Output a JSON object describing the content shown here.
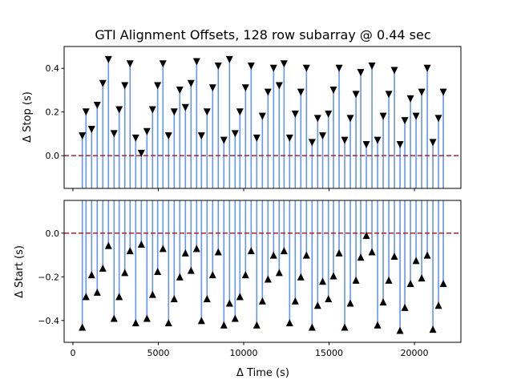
{
  "chart_data": [
    {
      "type": "stem",
      "title": "GTI Alignment Offsets, 128 row subarray @ 0.44 sec",
      "ylabel": "Δ Stop (s)",
      "xlabel": "",
      "xlim": [
        -516,
        22720
      ],
      "ylim": [
        -0.15,
        0.5
      ],
      "yticks": [
        0.0,
        0.2,
        0.4
      ],
      "ytick_labels": [
        "0.0",
        "0.2",
        "0.4"
      ],
      "marker": "triangle-down",
      "stem_color": "#6495ed",
      "reference_line": {
        "y": 0,
        "color": "#b22222",
        "style": "dashed"
      },
      "x": [
        549,
        765,
        1094,
        1423,
        1751,
        2080,
        2408,
        2709,
        3038,
        3347,
        3676,
        4005,
        4333,
        4662,
        4962,
        5272,
        5601,
        5930,
        6258,
        6587,
        6915,
        7244,
        7526,
        7854,
        8183,
        8512,
        8840,
        9169,
        9498,
        9779,
        10108,
        10437,
        10765,
        11094,
        11423,
        11751,
        12080,
        12362,
        12690,
        13019,
        13347,
        13676,
        14005,
        14333,
        14624,
        14962,
        15258,
        15587,
        15915,
        16244,
        16573,
        16854,
        17183,
        17512,
        17840,
        18169,
        18498,
        18826,
        19155,
        19437,
        19765,
        20094,
        20423,
        20751,
        21080,
        21408,
        21690
      ],
      "values": [
        0.09,
        0.2,
        0.12,
        0.23,
        0.33,
        0.44,
        0.1,
        0.21,
        0.32,
        0.42,
        0.08,
        0.01,
        0.11,
        0.21,
        0.32,
        0.42,
        0.09,
        0.2,
        0.3,
        0.22,
        0.33,
        0.43,
        0.09,
        0.2,
        0.31,
        0.41,
        0.07,
        0.44,
        0.1,
        0.2,
        0.31,
        0.41,
        0.08,
        0.18,
        0.29,
        0.4,
        0.32,
        0.42,
        0.08,
        0.19,
        0.29,
        0.4,
        0.06,
        0.17,
        0.09,
        0.19,
        0.3,
        0.4,
        0.07,
        0.17,
        0.28,
        0.38,
        0.05,
        0.41,
        0.07,
        0.18,
        0.28,
        0.39,
        0.05,
        0.16,
        0.26,
        0.18,
        0.29,
        0.4,
        0.06,
        0.17,
        0.29
      ]
    },
    {
      "type": "stem",
      "title": "",
      "ylabel": "Δ Start (s)",
      "xlabel": "Δ Time (s)",
      "xlim": [
        -516,
        22720
      ],
      "ylim": [
        -0.5,
        0.15
      ],
      "yticks": [
        0.0,
        -0.2,
        -0.4
      ],
      "ytick_labels": [
        "0.0",
        "−0.2",
        "−0.4"
      ],
      "xticks": [
        0,
        5000,
        10000,
        15000,
        20000
      ],
      "xtick_labels": [
        "0",
        "5000",
        "10000",
        "15000",
        "20000"
      ],
      "marker": "triangle-up",
      "stem_color": "#6495ed",
      "reference_line": {
        "y": 0,
        "color": "#b22222",
        "style": "dashed"
      },
      "x": [
        549,
        765,
        1094,
        1423,
        1751,
        2080,
        2408,
        2709,
        3038,
        3347,
        3676,
        4005,
        4333,
        4662,
        4962,
        5272,
        5601,
        5930,
        6258,
        6587,
        6915,
        7244,
        7526,
        7854,
        8183,
        8512,
        8840,
        9169,
        9498,
        9779,
        10108,
        10437,
        10765,
        11094,
        11423,
        11751,
        12080,
        12362,
        12690,
        13019,
        13347,
        13676,
        14005,
        14333,
        14624,
        14962,
        15258,
        15587,
        15915,
        16244,
        16573,
        16854,
        17183,
        17512,
        17840,
        18169,
        18498,
        18826,
        19155,
        19437,
        19765,
        20094,
        20423,
        20751,
        21080,
        21408,
        21690
      ],
      "values": [
        -0.43,
        -0.29,
        -0.19,
        -0.27,
        -0.16,
        -0.056,
        -0.39,
        -0.29,
        -0.18,
        -0.08,
        -0.41,
        -0.05,
        -0.39,
        -0.28,
        -0.175,
        -0.07,
        -0.41,
        -0.3,
        -0.2,
        -0.09,
        -0.17,
        -0.07,
        -0.4,
        -0.3,
        -0.19,
        -0.085,
        -0.42,
        -0.32,
        -0.39,
        -0.29,
        -0.19,
        -0.08,
        -0.42,
        -0.31,
        -0.21,
        -0.1,
        -0.18,
        -0.08,
        -0.41,
        -0.31,
        -0.2,
        -0.1,
        -0.43,
        -0.33,
        -0.22,
        -0.3,
        -0.195,
        -0.09,
        -0.43,
        -0.32,
        -0.215,
        -0.11,
        -0.01,
        -0.085,
        -0.42,
        -0.315,
        -0.215,
        -0.105,
        -0.445,
        -0.34,
        -0.23,
        -0.125,
        -0.205,
        -0.1,
        -0.44,
        -0.33,
        -0.23
      ]
    }
  ]
}
